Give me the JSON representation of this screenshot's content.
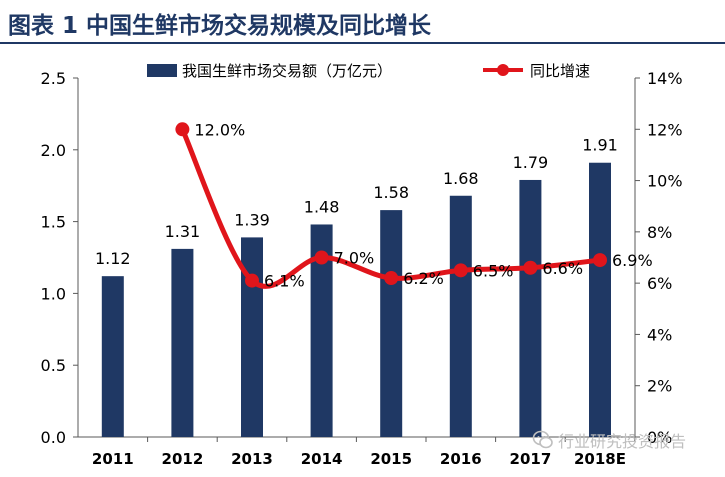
{
  "title": "图表 1 中国生鲜市场交易规模及同比增长",
  "watermark": "行业研究投资报告",
  "colors": {
    "bar": "#1f3864",
    "line": "#e0151b",
    "axis": "#595959",
    "title": "#1f3864"
  },
  "chart_data": {
    "type": "bar",
    "categories": [
      "2011",
      "2012",
      "2013",
      "2014",
      "2015",
      "2016",
      "2017",
      "2018E"
    ],
    "series": [
      {
        "name": "我国生鲜市场交易额（万亿元）",
        "type": "bar",
        "axis": "left",
        "values": [
          1.12,
          1.31,
          1.39,
          1.48,
          1.58,
          1.68,
          1.79,
          1.91
        ],
        "labels": [
          "1.12",
          "1.31",
          "1.39",
          "1.48",
          "1.58",
          "1.68",
          "1.79",
          "1.91"
        ]
      },
      {
        "name": "同比增速",
        "type": "line",
        "axis": "right",
        "values": [
          null,
          12.0,
          6.1,
          7.0,
          6.2,
          6.5,
          6.6,
          6.9
        ],
        "labels": [
          "",
          "12.0%",
          "6.1%",
          "7.0%",
          "6.2%",
          "6.5%",
          "6.6%",
          "6.9%"
        ]
      }
    ],
    "ylim": [
      0,
      2.5
    ],
    "yticks": [
      "0.0",
      "0.5",
      "1.0",
      "1.5",
      "2.0",
      "2.5"
    ],
    "y2lim": [
      0,
      14
    ],
    "y2ticks": [
      "0%",
      "2%",
      "4%",
      "6%",
      "8%",
      "10%",
      "12%",
      "14%"
    ],
    "legend_position": "top",
    "grid": false
  }
}
